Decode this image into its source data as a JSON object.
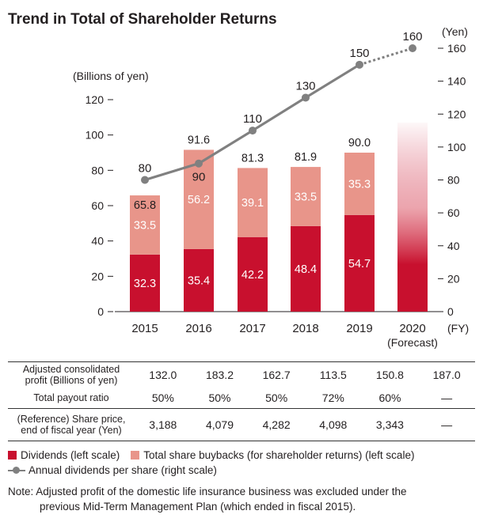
{
  "title": "Trend in Total of Shareholder Returns",
  "chart_data": {
    "type": "bar",
    "categories": [
      "2015",
      "2016",
      "2017",
      "2018",
      "2019",
      "2020"
    ],
    "category_sublabels": [
      "",
      "",
      "",
      "",
      "",
      "(Forecast)"
    ],
    "x_unit": "(FY)",
    "left_axis": {
      "label": "(Billions of yen)",
      "ylim": [
        0,
        140
      ],
      "ticks": [
        0,
        20,
        40,
        60,
        80,
        100,
        120
      ]
    },
    "right_axis": {
      "label": "(Yen)",
      "ylim": [
        0,
        163
      ],
      "ticks": [
        0,
        20,
        40,
        60,
        80,
        100,
        120,
        140,
        160
      ]
    },
    "series": [
      {
        "name": "Dividends (left scale)",
        "axis": "left",
        "kind": "bar-stack",
        "color": "#c8102e",
        "values": [
          32.3,
          35.4,
          42.2,
          48.4,
          54.7,
          null
        ]
      },
      {
        "name": "Total share buybacks (for shareholder returns) (left scale)",
        "axis": "left",
        "kind": "bar-stack",
        "color": "#e8958a",
        "values": [
          33.5,
          56.2,
          39.1,
          33.5,
          35.3,
          null
        ]
      },
      {
        "name": "Annual dividends per share (right scale)",
        "axis": "right",
        "kind": "line",
        "color": "#808080",
        "values": [
          80,
          90,
          110,
          130,
          150,
          160
        ]
      }
    ],
    "totals": [
      65.8,
      91.6,
      81.3,
      81.9,
      90.0,
      null
    ],
    "forecast_total_2020": 107,
    "grid": false
  },
  "table": {
    "rows": [
      {
        "label_lines": [
          "Adjusted consolidated",
          "profit (Billions of yen)"
        ],
        "values": [
          "132.0",
          "183.2",
          "162.7",
          "113.5",
          "150.8",
          "187.0"
        ]
      },
      {
        "label_lines": [
          "Total payout ratio"
        ],
        "values": [
          "50%",
          "50%",
          "50%",
          "72%",
          "60%",
          "—"
        ]
      },
      {
        "label_lines": [
          "(Reference) Share price,",
          "end of fiscal year (Yen)"
        ],
        "values": [
          "3,188",
          "4,079",
          "4,282",
          "4,098",
          "3,343",
          "—"
        ]
      }
    ]
  },
  "legend": {
    "dividends": "Dividends (left scale)",
    "buybacks": "Total share buybacks (for shareholder returns) (left scale)",
    "dps": "Annual dividends per share (right scale)"
  },
  "note": {
    "line1": "Note: Adjusted profit of the domestic life insurance business was excluded under the",
    "line2": "previous Mid-Term Management Plan (which ended in fiscal 2015)."
  }
}
